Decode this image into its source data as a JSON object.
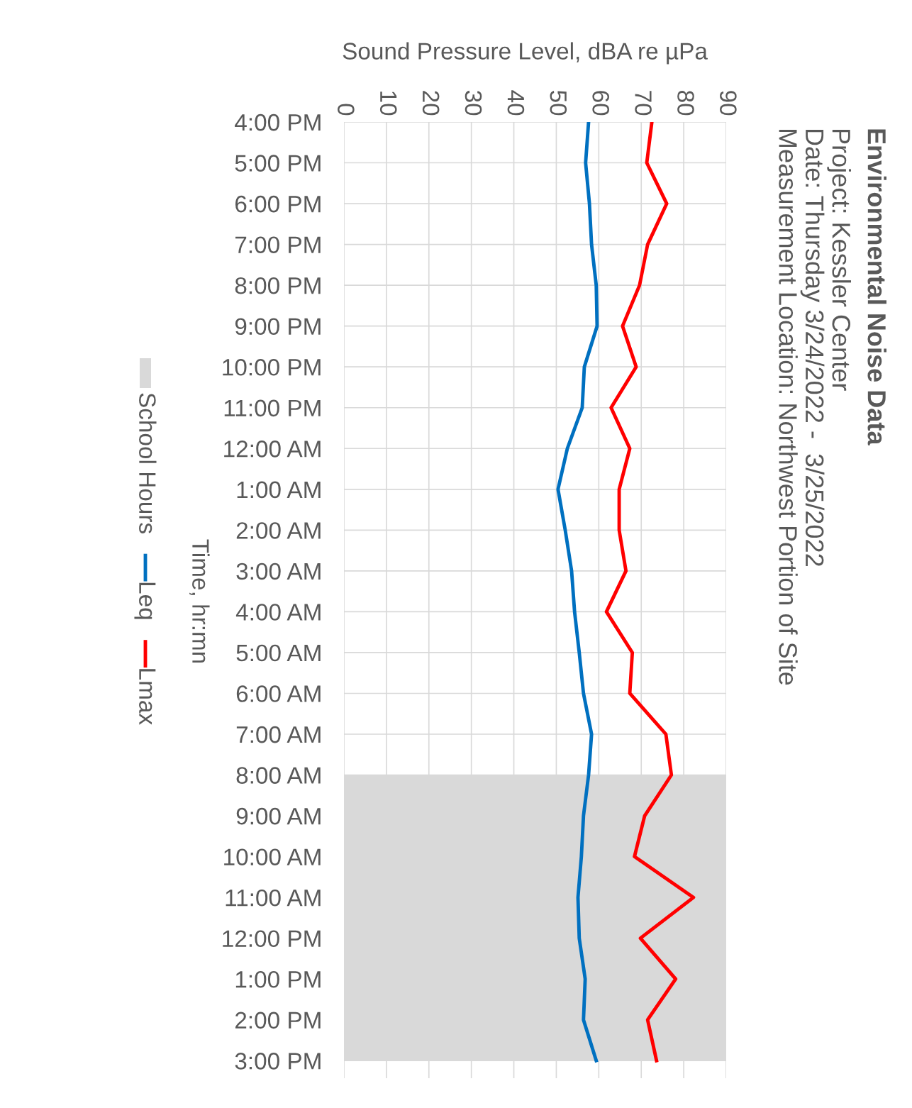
{
  "chart_data": {
    "type": "line",
    "orientation": "horizontal",
    "title": "Environmental Noise Data",
    "subtitle": "Project: Kessler Center\nDate: Thursday 3/24/2022 -  3/25/2022\nMeasurement Location: Northwest Portion of Site",
    "xlabel": "Sound Pressure Level, dBA re µPa",
    "ylabel": "Time, hr:mn",
    "categories": [
      "4:00 PM",
      "5:00 PM",
      "6:00 PM",
      "7:00 PM",
      "8:00 PM",
      "9:00 PM",
      "10:00 PM",
      "11:00 PM",
      "12:00 AM",
      "1:00 AM",
      "2:00 AM",
      "3:00 AM",
      "4:00 AM",
      "5:00 AM",
      "6:00 AM",
      "7:00 AM",
      "8:00 AM",
      "9:00 AM",
      "10:00 AM",
      "11:00 AM",
      "12:00 PM",
      "1:00 PM",
      "2:00 PM",
      "3:00 PM"
    ],
    "series": [
      {
        "name": "Leq",
        "color": "#0070c0",
        "values": [
          57.6,
          56.9,
          57.8,
          58.3,
          59.4,
          59.6,
          56.6,
          56.1,
          52.6,
          50.4,
          52.1,
          53.6,
          54.3,
          55.4,
          56.4,
          58.3,
          57.6,
          56.4,
          55.9,
          55.1,
          55.4,
          56.8,
          56.4,
          59.4
        ]
      },
      {
        "name": "Lmax",
        "color": "#ff0000",
        "values": [
          72.5,
          71.3,
          76.0,
          71.5,
          69.6,
          65.6,
          68.8,
          62.9,
          67.3,
          64.8,
          64.8,
          66.4,
          61.8,
          67.9,
          67.3,
          75.8,
          77.1,
          70.8,
          68.4,
          82.3,
          69.8,
          78.1,
          71.5,
          73.6
        ]
      }
    ],
    "xlim": [
      0,
      90
    ],
    "xticks": [
      0,
      10,
      20,
      30,
      40,
      50,
      60,
      70,
      80,
      90
    ],
    "bands": [
      {
        "axis": "y",
        "from": "8:00 AM",
        "to": "3:00 PM",
        "label": "School Hours",
        "color": "#d9d9d9"
      }
    ],
    "grid": true,
    "legend": "left",
    "line_style": "solid",
    "marker": "none"
  }
}
